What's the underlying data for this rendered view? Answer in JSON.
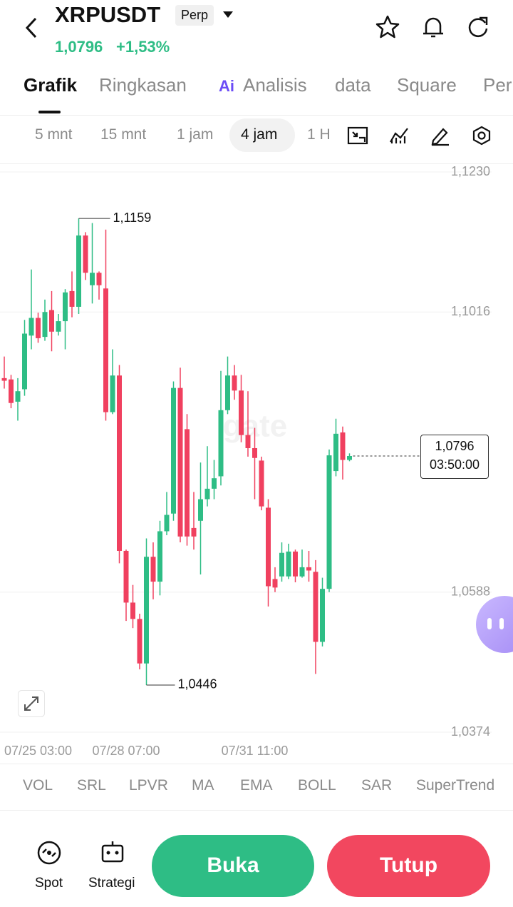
{
  "header": {
    "symbol": "XRPUSDT",
    "badge": "Perp",
    "price": "1,0796",
    "change": "+1,53%"
  },
  "tabs": {
    "ai_badge": "Ai",
    "items": [
      "Grafik",
      "Ringkasan",
      "Analisis",
      "data",
      "Square",
      "Per"
    ]
  },
  "intervals": [
    "5 mnt",
    "15 mnt",
    "1 jam",
    "4 jam",
    "1 H"
  ],
  "chart_data": {
    "type": "candlestick",
    "watermark": "gate",
    "up_color": "#2ebd85",
    "down_color": "#f0405f",
    "grid": true,
    "categories": [
      null,
      null,
      null,
      null,
      null,
      "07/25 03:00",
      null,
      null,
      null,
      null,
      null,
      null,
      null,
      null,
      null,
      null,
      null,
      null,
      "07/28 07:00",
      null,
      null,
      null,
      null,
      null,
      null,
      null,
      null,
      null,
      null,
      null,
      null,
      null,
      null,
      null,
      null,
      null,
      null,
      "07/31 11:00",
      null,
      null,
      null,
      null,
      null,
      null,
      null,
      null,
      null,
      null,
      null,
      null,
      null,
      null
    ],
    "open": [
      1.0915,
      1.0913,
      1.0879,
      1.0898,
      1.098,
      1.1007,
      1.0978,
      1.1019,
      1.0986,
      1.1002,
      1.1048,
      1.1024,
      1.1133,
      1.1057,
      1.1076,
      1.1052,
      1.0863,
      1.0919,
      1.0651,
      1.0572,
      1.0547,
      1.0479,
      1.0642,
      1.0604,
      1.0681,
      1.0708,
      1.09,
      1.0837,
      1.0686,
      1.0697,
      1.073,
      1.0746,
      1.0765,
      1.0866,
      1.0919,
      1.0896,
      1.0828,
      1.0808,
      1.0789,
      1.0717,
      1.0608,
      1.0612,
      1.0612,
      1.065,
      1.0612,
      1.0626,
      1.0619,
      1.0512,
      1.0593,
      1.0773,
      1.0832,
      1.079
    ],
    "high": [
      1.0948,
      1.092,
      1.0915,
      1.1004,
      1.1081,
      1.1015,
      1.1035,
      1.1048,
      1.1013,
      1.1051,
      1.1078,
      1.1159,
      1.1138,
      1.1152,
      1.1078,
      1.1142,
      1.0959,
      1.0935,
      1.0653,
      1.0599,
      1.0555,
      1.067,
      1.0664,
      1.0697,
      1.0741,
      1.091,
      1.0931,
      1.086,
      1.0741,
      1.0786,
      1.0811,
      1.079,
      1.0926,
      1.0948,
      1.0935,
      1.092,
      1.0895,
      1.0839,
      1.0795,
      1.073,
      1.0626,
      1.0664,
      1.0662,
      1.0653,
      1.0653,
      1.0651,
      1.0637,
      1.061,
      1.0806,
      1.0853,
      1.0841,
      1.08
    ],
    "low": [
      1.0899,
      1.0869,
      1.085,
      1.0888,
      1.0959,
      1.0969,
      1.0972,
      1.0956,
      1.098,
      1.0959,
      1.1008,
      1.1013,
      1.1065,
      1.1029,
      1.1035,
      1.085,
      1.086,
      1.0632,
      1.0544,
      1.0533,
      1.047,
      1.0446,
      1.0577,
      1.0583,
      1.0675,
      1.0697,
      1.0664,
      1.0659,
      1.0653,
      1.0615,
      1.0719,
      1.073,
      1.0751,
      1.086,
      1.0882,
      1.0817,
      1.0795,
      1.073,
      1.0713,
      1.0566,
      1.0588,
      1.0604,
      1.0608,
      1.0603,
      1.061,
      1.0604,
      1.0463,
      1.0505,
      1.0588,
      1.0765,
      1.076,
      1.0788
    ],
    "close": [
      1.0911,
      1.0877,
      1.0895,
      1.0983,
      1.1007,
      1.0976,
      1.1016,
      1.0986,
      1.1002,
      1.1046,
      1.1024,
      1.1133,
      1.1076,
      1.1076,
      1.1057,
      1.0863,
      1.0919,
      1.0651,
      1.0572,
      1.0547,
      1.0479,
      1.0642,
      1.0604,
      1.0681,
      1.0706,
      1.09,
      1.0673,
      1.0673,
      1.0673,
      1.073,
      1.0746,
      1.0762,
      1.0866,
      1.0919,
      1.0896,
      1.0828,
      1.0808,
      1.0793,
      1.0719,
      1.0597,
      1.0595,
      1.0648,
      1.065,
      1.0612,
      1.0626,
      1.0621,
      1.0512,
      1.0593,
      1.0797,
      1.083,
      1.079,
      1.0796
    ],
    "max_label": "1,1159",
    "min_label": "1,0446",
    "last_label": "1,0796",
    "countdown": "03:50:00",
    "ylim": [
      1.0374,
      1.123
    ],
    "yticks": [
      {
        "value": 1.0374,
        "label": "1,0374"
      },
      {
        "value": 1.0588,
        "label": "1,0588"
      },
      {
        "value": 1.1016,
        "label": "1,1016"
      },
      {
        "value": 1.123,
        "label": "1,1230"
      }
    ]
  },
  "indicators": [
    "VOL",
    "SRL",
    "LPVR",
    "MA",
    "EMA",
    "BOLL",
    "SAR",
    "SuperTrend"
  ],
  "bottom": {
    "spot": "Spot",
    "strategy": "Strategi",
    "open_button": "Buka",
    "close_button": "Tutup"
  }
}
